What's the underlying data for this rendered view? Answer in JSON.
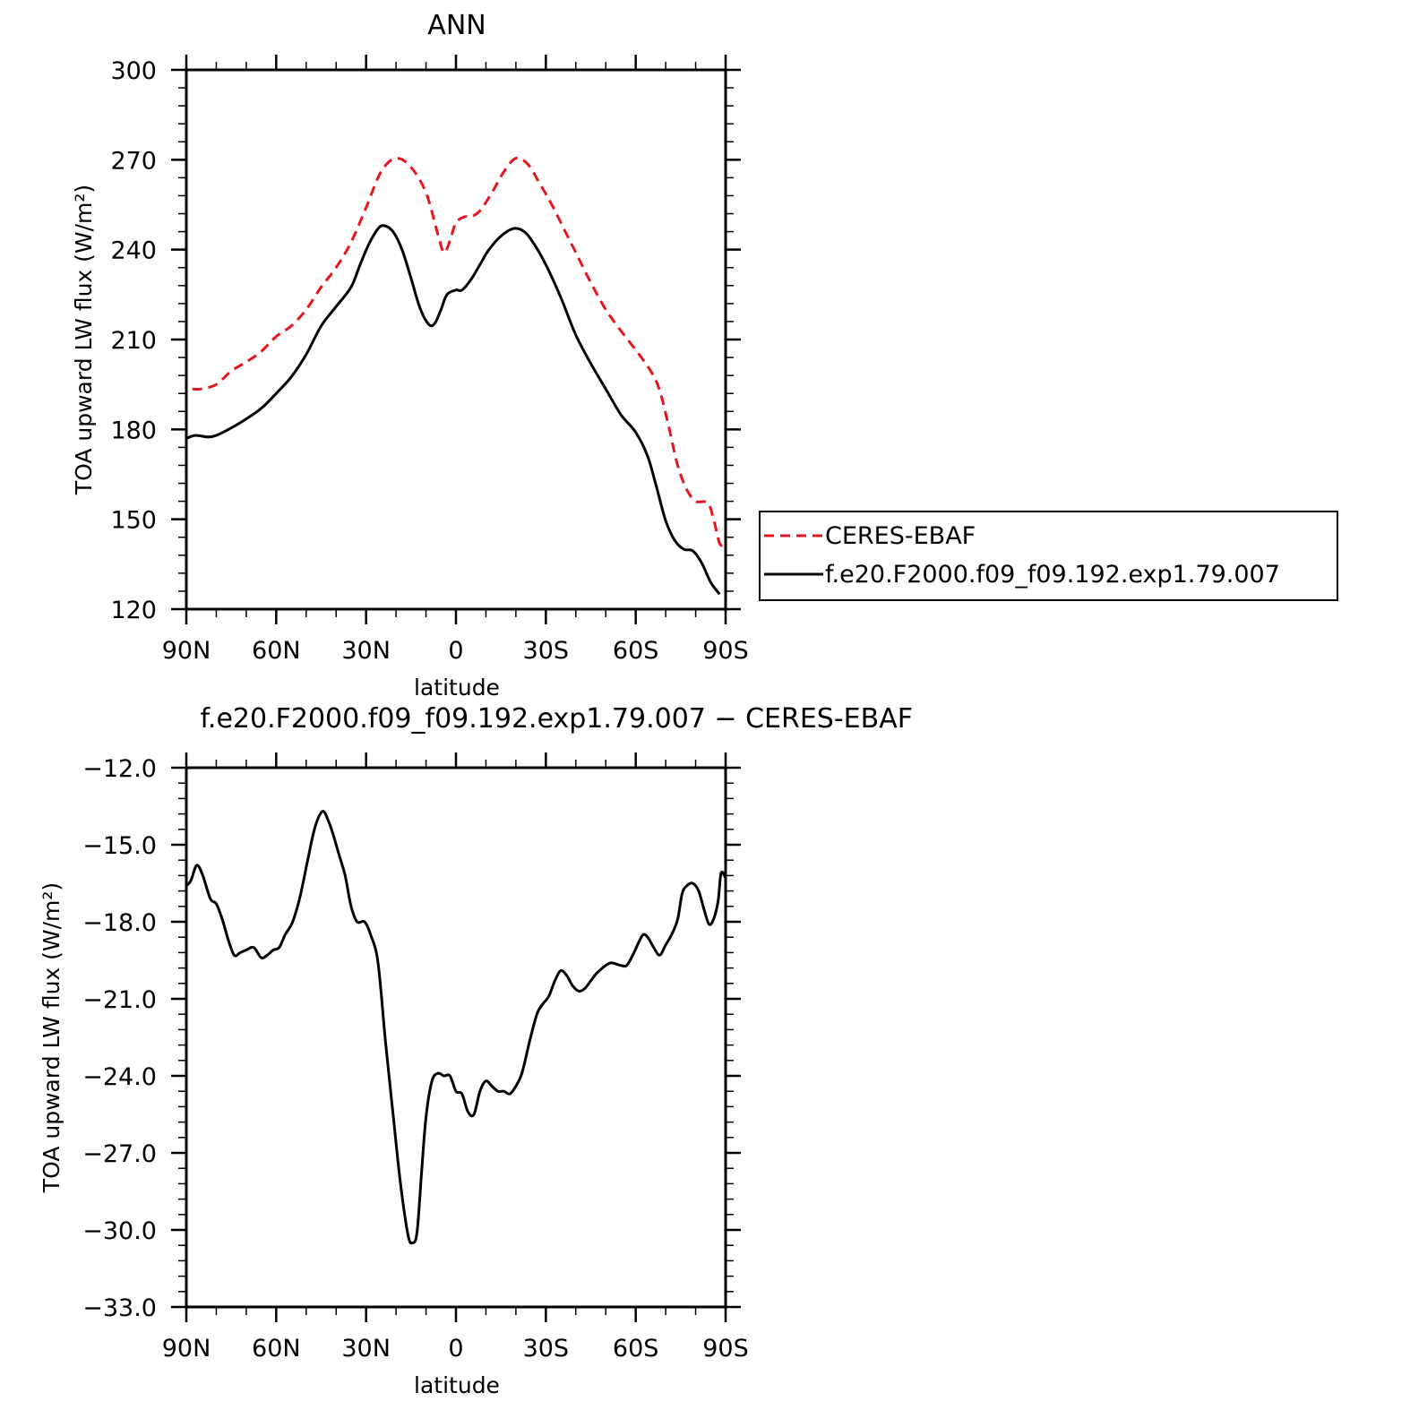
{
  "chart_data": [
    {
      "type": "line",
      "title": "ANN",
      "xlabel": "latitude",
      "ylabel": "TOA upward LW flux (W/m²)",
      "xlim": [
        90,
        -90
      ],
      "ylim": [
        120,
        300
      ],
      "xticks": [
        90,
        60,
        30,
        0,
        -30,
        -60,
        -90
      ],
      "xtick_labels": [
        "90N",
        "60N",
        "30N",
        "0",
        "30S",
        "60S",
        "90S"
      ],
      "yticks": [
        120,
        150,
        180,
        210,
        240,
        270,
        300
      ],
      "ytick_labels": [
        "120",
        "150",
        "180",
        "210",
        "240",
        "270",
        "300"
      ],
      "legend_position": "right",
      "series": [
        {
          "name": "CERES-EBAF",
          "color": "#e8141c",
          "dash": "dashed",
          "points": [
            [
              88,
              193.5
            ],
            [
              85,
              193.5
            ],
            [
              80,
              195
            ],
            [
              75,
              199.5
            ],
            [
              70,
              202.5
            ],
            [
              65,
              206
            ],
            [
              60,
              211
            ],
            [
              55,
              214.5
            ],
            [
              50,
              220
            ],
            [
              45,
              227.5
            ],
            [
              40,
              234
            ],
            [
              35,
              242.5
            ],
            [
              30,
              254
            ],
            [
              25,
              266
            ],
            [
              20,
              270.5
            ],
            [
              15,
              267.5
            ],
            [
              10,
              259
            ],
            [
              6,
              245
            ],
            [
              4,
              239
            ],
            [
              2,
              243
            ],
            [
              0,
              249
            ],
            [
              -3,
              251
            ],
            [
              -5,
              251
            ],
            [
              -8,
              253
            ],
            [
              -12,
              259
            ],
            [
              -16,
              266
            ],
            [
              -20,
              270.5
            ],
            [
              -24,
              268.5
            ],
            [
              -28,
              262
            ],
            [
              -32,
              255
            ],
            [
              -36,
              247
            ],
            [
              -40,
              239
            ],
            [
              -45,
              229
            ],
            [
              -50,
              220
            ],
            [
              -55,
              213
            ],
            [
              -60,
              206.5
            ],
            [
              -65,
              199.5
            ],
            [
              -68,
              193
            ],
            [
              -71,
              181
            ],
            [
              -74,
              168
            ],
            [
              -77,
              160
            ],
            [
              -80,
              156
            ],
            [
              -84,
              155.5
            ],
            [
              -86,
              150
            ],
            [
              -88,
              142
            ],
            [
              -90,
              141
            ]
          ]
        },
        {
          "name": "f.e20.F2000.f09_f09.192.exp1.79.007",
          "color": "#000000",
          "dash": "solid",
          "points": [
            [
              90,
              177
            ],
            [
              87,
              178
            ],
            [
              83,
              177.5
            ],
            [
              80,
              178
            ],
            [
              75,
              180.5
            ],
            [
              70,
              183.5
            ],
            [
              65,
              187
            ],
            [
              60,
              192
            ],
            [
              55,
              197.5
            ],
            [
              50,
              205
            ],
            [
              45,
              214.5
            ],
            [
              40,
              221
            ],
            [
              35,
              227.5
            ],
            [
              32,
              235
            ],
            [
              29,
              242
            ],
            [
              26,
              247
            ],
            [
              24,
              248
            ],
            [
              21,
              246
            ],
            [
              18,
              240
            ],
            [
              15,
              230.5
            ],
            [
              12,
              220.5
            ],
            [
              9,
              215
            ],
            [
              7,
              215.5
            ],
            [
              5,
              220
            ],
            [
              3,
              225
            ],
            [
              0,
              226.5
            ],
            [
              -2,
              226.5
            ],
            [
              -5,
              230
            ],
            [
              -8,
              235
            ],
            [
              -11,
              240
            ],
            [
              -15,
              244.5
            ],
            [
              -19,
              247
            ],
            [
              -22,
              246.5
            ],
            [
              -25,
              243.5
            ],
            [
              -30,
              235
            ],
            [
              -35,
              224
            ],
            [
              -40,
              211.5
            ],
            [
              -45,
              202
            ],
            [
              -50,
              193.5
            ],
            [
              -55,
              185
            ],
            [
              -60,
              179
            ],
            [
              -64,
              171
            ],
            [
              -67,
              160.5
            ],
            [
              -70,
              149.5
            ],
            [
              -73,
              143
            ],
            [
              -76,
              140
            ],
            [
              -79,
              139.5
            ],
            [
              -82,
              135.5
            ],
            [
              -85,
              129
            ],
            [
              -88,
              125
            ]
          ]
        }
      ]
    },
    {
      "type": "line",
      "title": "f.e20.F2000.f09_f09.192.exp1.79.007 − CERES-EBAF",
      "xlabel": "latitude",
      "ylabel": "TOA upward LW flux (W/m²)",
      "xlim": [
        90,
        -90
      ],
      "ylim": [
        -33,
        -12
      ],
      "xticks": [
        90,
        60,
        30,
        0,
        -30,
        -60,
        -90
      ],
      "xtick_labels": [
        "90N",
        "60N",
        "30N",
        "0",
        "30S",
        "60S",
        "90S"
      ],
      "yticks": [
        -33,
        -30,
        -27,
        -24,
        -21,
        -18,
        -15,
        -12
      ],
      "ytick_labels": [
        "−33.0",
        "−30.0",
        "−27.0",
        "−24.0",
        "−21.0",
        "−18.0",
        "−15.0",
        "−12.0"
      ],
      "series": [
        {
          "color": "#000000",
          "dash": "solid",
          "points": [
            [
              90,
              -16.6
            ],
            [
              88.5,
              -16.4
            ],
            [
              86.5,
              -15.8
            ],
            [
              84.5,
              -16.2
            ],
            [
              82,
              -17.1
            ],
            [
              80,
              -17.3
            ],
            [
              78,
              -17.9
            ],
            [
              76,
              -18.7
            ],
            [
              74,
              -19.3
            ],
            [
              72,
              -19.2
            ],
            [
              70,
              -19.1
            ],
            [
              67.5,
              -19.0
            ],
            [
              65,
              -19.4
            ],
            [
              63,
              -19.3
            ],
            [
              61,
              -19.1
            ],
            [
              59,
              -19.0
            ],
            [
              57,
              -18.5
            ],
            [
              54.5,
              -18.0
            ],
            [
              52,
              -17.0
            ],
            [
              49.5,
              -15.6
            ],
            [
              47,
              -14.3
            ],
            [
              44.5,
              -13.7
            ],
            [
              42.5,
              -14.1
            ],
            [
              41,
              -14.6
            ],
            [
              39,
              -15.4
            ],
            [
              37,
              -16.2
            ],
            [
              35,
              -17.4
            ],
            [
              33,
              -18.0
            ],
            [
              30.5,
              -18.0
            ],
            [
              28.5,
              -18.5
            ],
            [
              26,
              -19.6
            ],
            [
              23.5,
              -22.7
            ],
            [
              21,
              -25.5
            ],
            [
              18.5,
              -28.2
            ],
            [
              16,
              -30.2
            ],
            [
              14.5,
              -30.5
            ],
            [
              13,
              -30.1
            ],
            [
              11.5,
              -27.8
            ],
            [
              10,
              -25.6
            ],
            [
              8,
              -24.2
            ],
            [
              6,
              -23.9
            ],
            [
              4,
              -24.0
            ],
            [
              2,
              -24.0
            ],
            [
              0,
              -24.6
            ],
            [
              -2,
              -24.7
            ],
            [
              -4,
              -25.4
            ],
            [
              -6,
              -25.5
            ],
            [
              -8,
              -24.6
            ],
            [
              -10,
              -24.2
            ],
            [
              -12,
              -24.4
            ],
            [
              -14,
              -24.6
            ],
            [
              -16,
              -24.6
            ],
            [
              -18,
              -24.7
            ],
            [
              -20,
              -24.4
            ],
            [
              -22,
              -23.9
            ],
            [
              -24.5,
              -22.7
            ],
            [
              -27,
              -21.6
            ],
            [
              -29,
              -21.2
            ],
            [
              -31,
              -20.9
            ],
            [
              -33,
              -20.3
            ],
            [
              -35,
              -19.9
            ],
            [
              -37,
              -20.1
            ],
            [
              -39,
              -20.5
            ],
            [
              -41,
              -20.7
            ],
            [
              -43,
              -20.6
            ],
            [
              -45,
              -20.3
            ],
            [
              -47,
              -20.0
            ],
            [
              -50,
              -19.7
            ],
            [
              -52,
              -19.6
            ],
            [
              -55,
              -19.7
            ],
            [
              -57,
              -19.7
            ],
            [
              -59,
              -19.3
            ],
            [
              -61,
              -18.8
            ],
            [
              -62.5,
              -18.5
            ],
            [
              -64,
              -18.6
            ],
            [
              -66,
              -19.0
            ],
            [
              -68,
              -19.3
            ],
            [
              -70,
              -18.9
            ],
            [
              -72,
              -18.5
            ],
            [
              -74,
              -17.9
            ],
            [
              -75.5,
              -16.9
            ],
            [
              -77,
              -16.6
            ],
            [
              -79,
              -16.5
            ],
            [
              -81,
              -16.8
            ],
            [
              -83,
              -17.6
            ],
            [
              -84.5,
              -18.1
            ],
            [
              -86,
              -17.9
            ],
            [
              -87.5,
              -17.2
            ],
            [
              -88.5,
              -16.1
            ],
            [
              -90,
              -16.3
            ]
          ]
        }
      ]
    }
  ]
}
